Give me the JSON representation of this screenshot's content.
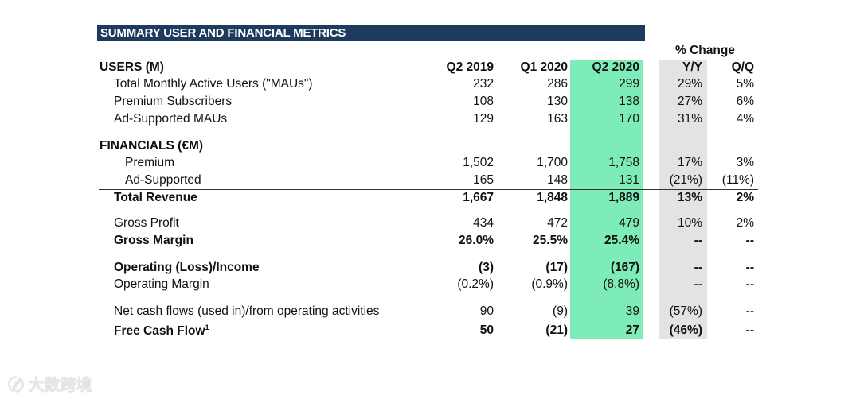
{
  "title": "SUMMARY USER AND FINANCIAL METRICS",
  "pct_change_label": "% Change",
  "columns": [
    "Q2 2019",
    "Q1 2020",
    "Q2 2020",
    "Y/Y",
    "Q/Q"
  ],
  "users_section": "USERS (M)",
  "financials_section": "FINANCIALS (€M)",
  "rows": [
    {
      "label": "Total Monthly Active Users (\"MAUs\")",
      "values": [
        "232",
        "286",
        "299",
        "29%",
        "5%"
      ]
    },
    {
      "label": "Premium Subscribers",
      "values": [
        "108",
        "130",
        "138",
        "27%",
        "6%"
      ]
    },
    {
      "label": "Ad-Supported MAUs",
      "values": [
        "129",
        "163",
        "170",
        "31%",
        "4%"
      ]
    },
    {
      "label": "Premium",
      "values": [
        "1,502",
        "1,700",
        "1,758",
        "17%",
        "3%"
      ]
    },
    {
      "label": "Ad-Supported",
      "values": [
        "165",
        "148",
        "131",
        "(21%)",
        "(11%)"
      ]
    },
    {
      "label": "Total Revenue",
      "values": [
        "1,667",
        "1,848",
        "1,889",
        "13%",
        "2%"
      ]
    },
    {
      "label": "Gross Profit",
      "values": [
        "434",
        "472",
        "479",
        "10%",
        "2%"
      ]
    },
    {
      "label": "Gross Margin",
      "values": [
        "26.0%",
        "25.5%",
        "25.4%",
        "--",
        "--"
      ]
    },
    {
      "label": "Operating (Loss)/Income",
      "values": [
        "(3)",
        "(17)",
        "(167)",
        "--",
        "--"
      ]
    },
    {
      "label": "Operating Margin",
      "values": [
        "(0.2%)",
        "(0.9%)",
        "(8.8%)",
        "--",
        "--"
      ]
    },
    {
      "label": "Net cash flows (used in)/from operating activities",
      "values": [
        "90",
        "(9)",
        "39",
        "(57%)",
        "--"
      ]
    },
    {
      "label": "Free Cash Flow",
      "footnote": "1",
      "values": [
        "50",
        "(21)",
        "27",
        "(46%)",
        "--"
      ]
    }
  ],
  "colors": {
    "title_bar": "#1d3a5f",
    "highlight_green": "#7eecb8",
    "highlight_grey": "#e3e3e3"
  },
  "watermark": "大数跨境"
}
